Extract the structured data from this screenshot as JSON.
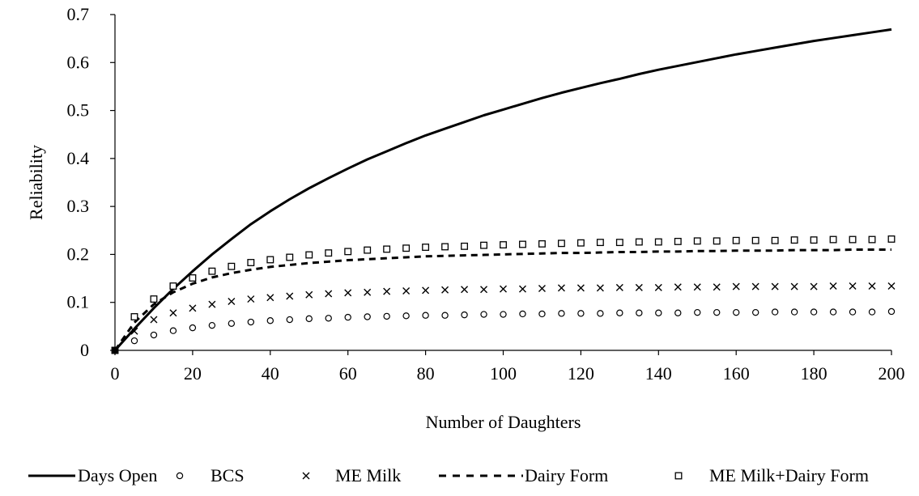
{
  "chart_data": {
    "type": "line",
    "title": "",
    "xlabel": "Number of Daughters",
    "ylabel": "Reliability",
    "xlim": [
      0,
      200
    ],
    "ylim": [
      0,
      0.7
    ],
    "x_ticks": [
      0,
      20,
      40,
      60,
      80,
      100,
      120,
      140,
      160,
      180,
      200
    ],
    "y_ticks": [
      0,
      0.1,
      0.2,
      0.3,
      0.4,
      0.5,
      0.6,
      0.7
    ],
    "y_tick_labels": [
      "0",
      "0.1",
      "0.2",
      "0.3",
      "0.4",
      "0.5",
      "0.6",
      "0.7"
    ],
    "grid": false,
    "legend_position": "bottom",
    "x": [
      0,
      5,
      10,
      15,
      20,
      25,
      30,
      35,
      40,
      45,
      50,
      55,
      60,
      65,
      70,
      75,
      80,
      85,
      90,
      95,
      100,
      105,
      110,
      115,
      120,
      125,
      130,
      135,
      140,
      145,
      150,
      155,
      160,
      165,
      170,
      175,
      180,
      185,
      190,
      195,
      200
    ],
    "series": [
      {
        "name": "Days Open",
        "style": "solid-line",
        "color": "#000000",
        "values": [
          0,
          0.045,
          0.088,
          0.128,
          0.165,
          0.2,
          0.232,
          0.263,
          0.29,
          0.315,
          0.338,
          0.359,
          0.379,
          0.398,
          0.415,
          0.432,
          0.448,
          0.462,
          0.476,
          0.49,
          0.502,
          0.514,
          0.526,
          0.537,
          0.547,
          0.557,
          0.566,
          0.576,
          0.585,
          0.593,
          0.601,
          0.609,
          0.617,
          0.624,
          0.631,
          0.638,
          0.645,
          0.651,
          0.657,
          0.663,
          0.669
        ]
      },
      {
        "name": "BCS",
        "style": "circle-markers",
        "color": "#000000",
        "values": [
          0,
          0.02,
          0.032,
          0.041,
          0.047,
          0.052,
          0.056,
          0.059,
          0.062,
          0.064,
          0.066,
          0.067,
          0.069,
          0.07,
          0.071,
          0.072,
          0.073,
          0.073,
          0.074,
          0.075,
          0.075,
          0.076,
          0.076,
          0.077,
          0.077,
          0.077,
          0.078,
          0.078,
          0.078,
          0.078,
          0.079,
          0.079,
          0.079,
          0.079,
          0.08,
          0.08,
          0.08,
          0.08,
          0.08,
          0.08,
          0.081
        ]
      },
      {
        "name": "ME Milk",
        "style": "x-markers",
        "color": "#000000",
        "values": [
          0,
          0.04,
          0.064,
          0.078,
          0.088,
          0.096,
          0.102,
          0.107,
          0.11,
          0.113,
          0.116,
          0.118,
          0.12,
          0.121,
          0.123,
          0.124,
          0.125,
          0.126,
          0.127,
          0.127,
          0.128,
          0.128,
          0.129,
          0.13,
          0.13,
          0.13,
          0.131,
          0.131,
          0.131,
          0.132,
          0.132,
          0.132,
          0.133,
          0.133,
          0.133,
          0.133,
          0.133,
          0.134,
          0.134,
          0.134,
          0.134
        ]
      },
      {
        "name": "Dairy Form",
        "style": "dashed-line",
        "color": "#000000",
        "values": [
          0,
          0.058,
          0.096,
          0.121,
          0.139,
          0.152,
          0.161,
          0.168,
          0.174,
          0.178,
          0.182,
          0.185,
          0.188,
          0.19,
          0.192,
          0.194,
          0.196,
          0.197,
          0.198,
          0.199,
          0.2,
          0.201,
          0.202,
          0.203,
          0.203,
          0.204,
          0.205,
          0.205,
          0.206,
          0.206,
          0.207,
          0.207,
          0.208,
          0.208,
          0.208,
          0.209,
          0.209,
          0.209,
          0.21,
          0.21,
          0.21
        ]
      },
      {
        "name": "ME Milk+Dairy Form",
        "style": "square-markers",
        "color": "#000000",
        "values": [
          0,
          0.07,
          0.107,
          0.134,
          0.151,
          0.165,
          0.175,
          0.183,
          0.189,
          0.194,
          0.199,
          0.203,
          0.206,
          0.209,
          0.211,
          0.213,
          0.215,
          0.216,
          0.217,
          0.219,
          0.22,
          0.221,
          0.222,
          0.223,
          0.224,
          0.225,
          0.225,
          0.226,
          0.226,
          0.227,
          0.228,
          0.228,
          0.229,
          0.229,
          0.229,
          0.23,
          0.23,
          0.231,
          0.231,
          0.231,
          0.232
        ]
      }
    ]
  }
}
